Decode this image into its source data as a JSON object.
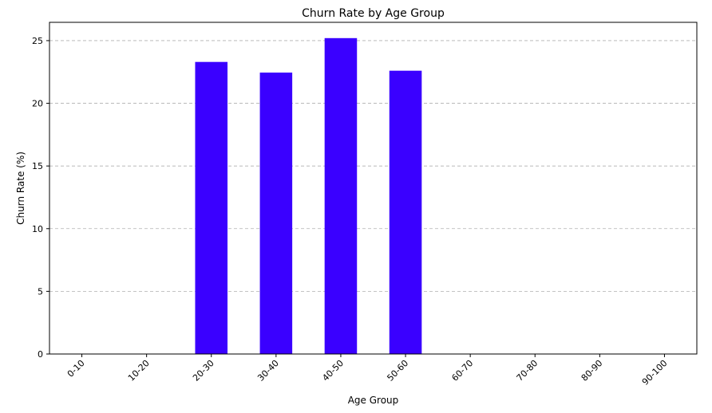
{
  "chart_data": {
    "type": "bar",
    "title": "Churn Rate by Age Group",
    "xlabel": "Age Group",
    "ylabel": "Churn Rate (%)",
    "categories": [
      "0-10",
      "10-20",
      "20-30",
      "30-40",
      "40-50",
      "50-60",
      "60-70",
      "70-80",
      "80-90",
      "90-100"
    ],
    "values": [
      0,
      0,
      23.3,
      22.45,
      25.2,
      22.6,
      0,
      0,
      0,
      0
    ],
    "ylim": [
      0,
      26.46
    ],
    "yticks": [
      0,
      5,
      10,
      15,
      20,
      25
    ],
    "grid": "y-dashed",
    "bar_color": "#3a00ff"
  }
}
